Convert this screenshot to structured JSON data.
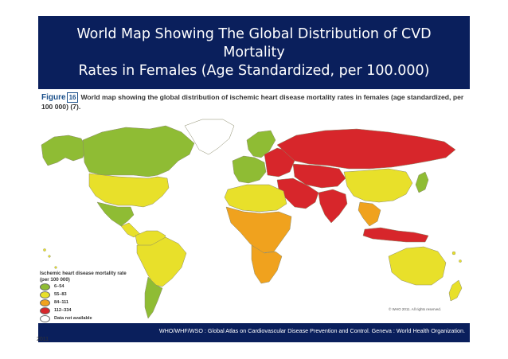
{
  "title": "World Map Showing The Global Distribution of CVD Mortality\nRates in Females (Age Standardized, per 100.000)",
  "figure": {
    "label": "Figure",
    "number": "16",
    "caption": "World map showing the global distribution of ischemic heart disease mortality rates in females (age standardized, per 100 000) (7)."
  },
  "legend": {
    "title": "Ischemic heart disease mortality rate\n(per 100 000)",
    "items": [
      {
        "label": "6–54",
        "color": "#8fbc34"
      },
      {
        "label": "55–83",
        "color": "#e8e02a"
      },
      {
        "label": "84–111",
        "color": "#f0a21e"
      },
      {
        "label": "112–334",
        "color": "#d7262b"
      },
      {
        "label": "Data not available",
        "color": "#ffffff"
      }
    ]
  },
  "copyright": "© WHO 2011. All rights reserved.",
  "source": "WHO/WHF/WSO : Global Atlas on Cardiovascular Disease Prevention and Control. Geneva : World Health Organization.",
  "year": "2011",
  "regions": [
    {
      "name": "greenland",
      "category": "Data not available"
    },
    {
      "name": "canada",
      "category": "6–54"
    },
    {
      "name": "alaska",
      "category": "6–54"
    },
    {
      "name": "usa",
      "category": "55–83"
    },
    {
      "name": "mexico",
      "category": "6–54"
    },
    {
      "name": "central-america",
      "category": "55–83"
    },
    {
      "name": "south-america-north",
      "category": "55–83"
    },
    {
      "name": "brazil",
      "category": "55–83"
    },
    {
      "name": "argentina",
      "category": "6–54"
    },
    {
      "name": "western-europe",
      "category": "6–54"
    },
    {
      "name": "scandinavia",
      "category": "6–54"
    },
    {
      "name": "eastern-europe",
      "category": "112–334"
    },
    {
      "name": "russia",
      "category": "112–334"
    },
    {
      "name": "central-asia",
      "category": "112–334"
    },
    {
      "name": "middle-east",
      "category": "112–334"
    },
    {
      "name": "north-africa",
      "category": "55–83"
    },
    {
      "name": "sub-saharan-africa",
      "category": "84–111"
    },
    {
      "name": "southern-africa",
      "category": "84–111"
    },
    {
      "name": "india",
      "category": "112–334"
    },
    {
      "name": "china",
      "category": "55–83"
    },
    {
      "name": "japan",
      "category": "6–54"
    },
    {
      "name": "southeast-asia",
      "category": "84–111"
    },
    {
      "name": "indonesia",
      "category": "112–334"
    },
    {
      "name": "australia",
      "category": "55–83"
    },
    {
      "name": "new-zealand",
      "category": "55–83"
    }
  ]
}
